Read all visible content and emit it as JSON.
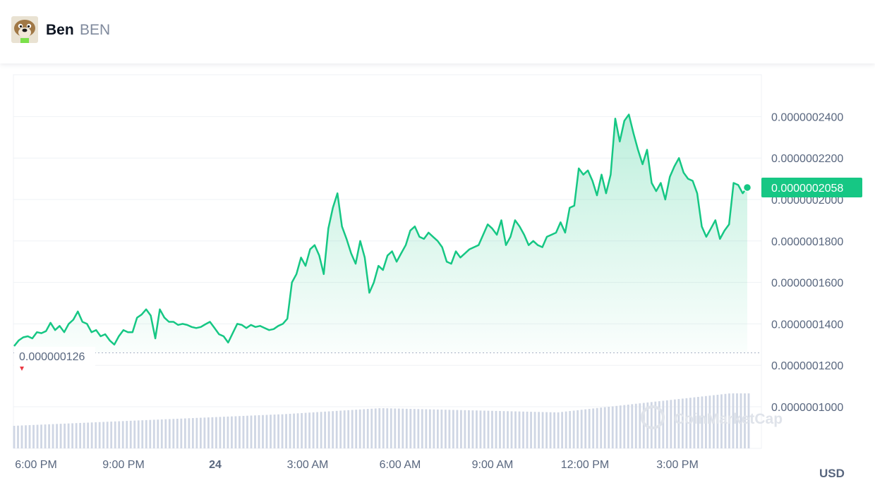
{
  "header": {
    "name": "Ben",
    "symbol": "BEN",
    "logo_icon": "ben-dog-avatar-icon"
  },
  "currency_label": "USD",
  "colors": {
    "line": "#16c784",
    "fill": "#16c784",
    "badge_bg": "#16c784",
    "badge_text": "#ffffff",
    "open_down": "#ea3943",
    "grid": "#eff2f5",
    "volume": "#cfd6e4",
    "axis_text": "#58667e",
    "watermark": "#dfe3ea"
  },
  "watermark": "CoinMarketCap",
  "chart_data": {
    "type": "area",
    "title": "",
    "xlabel": "",
    "ylabel": "",
    "y_ticks": [
      "0.0000001000",
      "0.0000001200",
      "0.0000001400",
      "0.0000001600",
      "0.0000001800",
      "0.0000002000",
      "0.0000002200",
      "0.0000002400"
    ],
    "x_ticks": [
      "6:00 PM",
      "9:00 PM",
      "24",
      "3:00 AM",
      "6:00 AM",
      "9:00 AM",
      "12:00 PM",
      "3:00 PM"
    ],
    "ylim": [
      8.52e-08,
      2.65e-07
    ],
    "open_price_label": "0.000000126",
    "open_price": 1.26e-07,
    "current_price_label": "0.0000002058",
    "current_price": 2.058e-07,
    "series": [
      {
        "values": [
          1.293,
          1.32,
          1.335,
          1.34,
          1.33,
          1.36,
          1.355,
          1.365,
          1.405,
          1.37,
          1.39,
          1.36,
          1.4,
          1.42,
          1.46,
          1.41,
          1.4,
          1.36,
          1.37,
          1.34,
          1.35,
          1.32,
          1.3,
          1.34,
          1.37,
          1.36,
          1.36,
          1.43,
          1.445,
          1.47,
          1.44,
          1.33,
          1.47,
          1.43,
          1.41,
          1.41,
          1.395,
          1.4,
          1.395,
          1.385,
          1.38,
          1.385,
          1.398,
          1.41,
          1.38,
          1.35,
          1.34,
          1.31,
          1.355,
          1.4,
          1.395,
          1.38,
          1.395,
          1.385,
          1.39,
          1.38,
          1.37,
          1.375,
          1.39,
          1.4,
          1.425,
          1.6,
          1.64,
          1.72,
          1.68,
          1.76,
          1.78,
          1.73,
          1.64,
          1.86,
          1.96,
          2.03,
          1.87,
          1.81,
          1.74,
          1.69,
          1.8,
          1.72,
          1.55,
          1.6,
          1.68,
          1.66,
          1.73,
          1.75,
          1.7,
          1.74,
          1.78,
          1.85,
          1.87,
          1.82,
          1.81,
          1.84,
          1.82,
          1.8,
          1.77,
          1.7,
          1.69,
          1.75,
          1.72,
          1.74,
          1.76,
          1.77,
          1.78,
          1.83,
          1.88,
          1.86,
          1.83,
          1.9,
          1.78,
          1.82,
          1.9,
          1.87,
          1.83,
          1.78,
          1.8,
          1.78,
          1.77,
          1.82,
          1.83,
          1.84,
          1.89,
          1.84,
          1.96,
          1.97,
          2.15,
          2.12,
          2.14,
          2.09,
          2.02,
          2.12,
          2.03,
          2.12,
          2.39,
          2.28,
          2.38,
          2.41,
          2.32,
          2.24,
          2.17,
          2.24,
          2.08,
          2.04,
          2.08,
          2.0,
          2.11,
          2.16,
          2.2,
          2.13,
          2.1,
          2.09,
          2.03,
          1.87,
          1.82,
          1.86,
          1.9,
          1.81,
          1.85,
          1.88,
          2.08,
          2.07,
          2.03,
          2.06
        ]
      }
    ],
    "volume_bars": 190,
    "legend": "none",
    "grid": true
  }
}
